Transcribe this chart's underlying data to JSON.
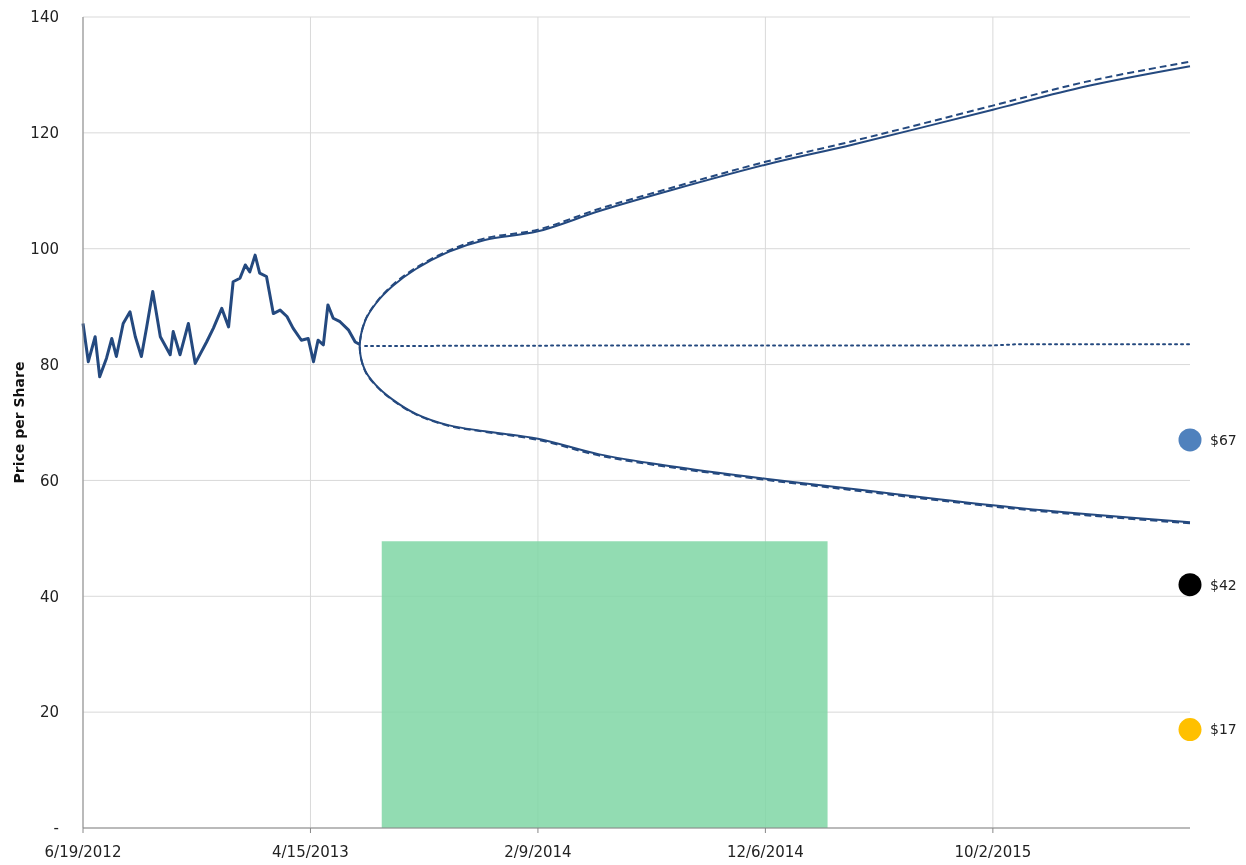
{
  "chart_data": {
    "type": "line",
    "ylabel": "Price per Share",
    "xlim": [
      "2012-06-19",
      "2016-06-18"
    ],
    "ylim": [
      0,
      140
    ],
    "xticks": [
      {
        "value": "2012-06-19",
        "label": "6/19/2012"
      },
      {
        "value": "2013-04-15",
        "label": "4/15/2013"
      },
      {
        "value": "2014-02-09",
        "label": "2/9/2014"
      },
      {
        "value": "2014-12-06",
        "label": "12/6/2014"
      },
      {
        "value": "2015-10-02",
        "label": "10/2/2015"
      }
    ],
    "yticks": [
      {
        "value": 0,
        "label": "-"
      },
      20,
      40,
      60,
      80,
      100,
      120,
      140
    ],
    "grid": true,
    "series": [
      {
        "type": "area",
        "color": "#7fd6a4",
        "x": [
          "2013-07-18",
          "2015-02-26"
        ],
        "values": [
          49.5,
          49.5
        ]
      },
      {
        "color": "#24497f",
        "line_style": "solid",
        "x": [
          "2012-06-19",
          "2012-06-26",
          "2012-07-05",
          "2012-07-11",
          "2012-07-20",
          "2012-07-27",
          "2012-08-02",
          "2012-08-11",
          "2012-08-20",
          "2012-08-27",
          "2012-09-04",
          "2012-09-11",
          "2012-09-19",
          "2012-09-29",
          "2012-10-12",
          "2012-10-16",
          "2012-10-25",
          "2012-11-05",
          "2012-11-14",
          "2012-11-29",
          "2012-12-08",
          "2012-12-19",
          "2012-12-28",
          "2013-01-03",
          "2013-01-12",
          "2013-01-19",
          "2013-01-25",
          "2013-02-01",
          "2013-02-07",
          "2013-02-16",
          "2013-02-25",
          "2013-03-06",
          "2013-03-15",
          "2013-03-23",
          "2013-04-03",
          "2013-04-12",
          "2013-04-19",
          "2013-04-25",
          "2013-05-02",
          "2013-05-08",
          "2013-05-15",
          "2013-05-24",
          "2013-06-04",
          "2013-06-13",
          "2013-06-19"
        ],
        "values": [
          87.1,
          80.5,
          84.8,
          77.9,
          81.1,
          84.5,
          81.4,
          87.1,
          89.1,
          84.8,
          81.4,
          86.5,
          92.6,
          84.8,
          81.7,
          85.7,
          81.7,
          87.1,
          80.2,
          83.9,
          86.3,
          89.7,
          86.5,
          94.3,
          94.9,
          97.2,
          96.0,
          98.9,
          95.8,
          95.2,
          88.8,
          89.4,
          88.3,
          86.3,
          84.2,
          84.5,
          80.5,
          84.2,
          83.4,
          90.3,
          88.0,
          87.4,
          86.0,
          83.9,
          83.5
        ]
      },
      {
        "color": "#24497f",
        "line_style": "solid",
        "x": [
          "2016-06-18",
          "2016-02-01",
          "2015-10-02",
          "2015-04-01",
          "2014-12-06",
          "2014-08-01",
          "2014-05-01",
          "2014-02-09",
          "2013-12-01",
          "2013-10-15",
          "2013-09-01",
          "2013-08-01",
          "2013-07-10",
          "2013-06-26",
          "2013-06-19",
          "2013-06-26",
          "2013-07-10",
          "2013-08-01",
          "2013-09-01",
          "2013-10-15",
          "2013-12-01",
          "2014-02-09",
          "2014-05-01",
          "2014-08-01",
          "2014-12-06",
          "2015-04-01",
          "2015-10-02",
          "2016-02-01",
          "2016-06-18"
        ],
        "values": [
          52.8,
          54.2,
          55.7,
          58.5,
          60.3,
          62.5,
          64.5,
          67.2,
          68.5,
          69.5,
          71.5,
          74,
          76.5,
          79,
          83,
          87.5,
          90.5,
          93.5,
          96.5,
          99.5,
          101.5,
          103,
          106.5,
          110,
          114.5,
          118,
          124,
          128,
          131.5
        ]
      },
      {
        "color": "#24497f",
        "line_style": "dashed",
        "x": [
          "2016-06-18",
          "2016-02-01",
          "2015-10-02",
          "2015-04-01",
          "2014-12-06",
          "2014-08-01",
          "2014-05-01",
          "2014-02-09",
          "2013-12-01",
          "2013-10-15",
          "2013-09-01",
          "2013-08-01",
          "2013-07-10",
          "2013-06-26",
          "2013-06-19",
          "2013-06-26",
          "2013-07-10",
          "2013-08-01",
          "2013-09-01",
          "2013-10-15",
          "2013-12-01",
          "2014-02-09",
          "2014-05-01",
          "2014-08-01",
          "2014-12-06",
          "2015-04-01",
          "2015-10-02",
          "2016-02-01",
          "2016-06-18"
        ],
        "values": [
          52.6,
          54,
          55.5,
          58.3,
          60.1,
          62.3,
          64.3,
          67,
          68.4,
          69.4,
          71.4,
          73.9,
          76.4,
          78.9,
          83,
          87.6,
          90.6,
          93.7,
          96.7,
          99.7,
          101.8,
          103.3,
          106.9,
          110.4,
          115,
          118.6,
          124.7,
          128.8,
          132.3
        ]
      },
      {
        "color": "#24497f",
        "line_style": "dotted",
        "x": [
          "2013-06-26",
          "2014-06-01",
          "2015-10-02",
          "2015-11-01",
          "2016-06-18"
        ],
        "values": [
          83.2,
          83.3,
          83.3,
          83.5,
          83.5
        ]
      },
      {
        "type": "scatter",
        "marker": "circle",
        "x": [
          "2016-06-18",
          "2016-06-18",
          "2016-06-18"
        ],
        "values": [
          67,
          42,
          17
        ],
        "colors": [
          "#4f81bd",
          "#000000",
          "#ffc000"
        ],
        "value_labels": [
          "$67",
          "$42",
          "$17"
        ]
      }
    ]
  }
}
